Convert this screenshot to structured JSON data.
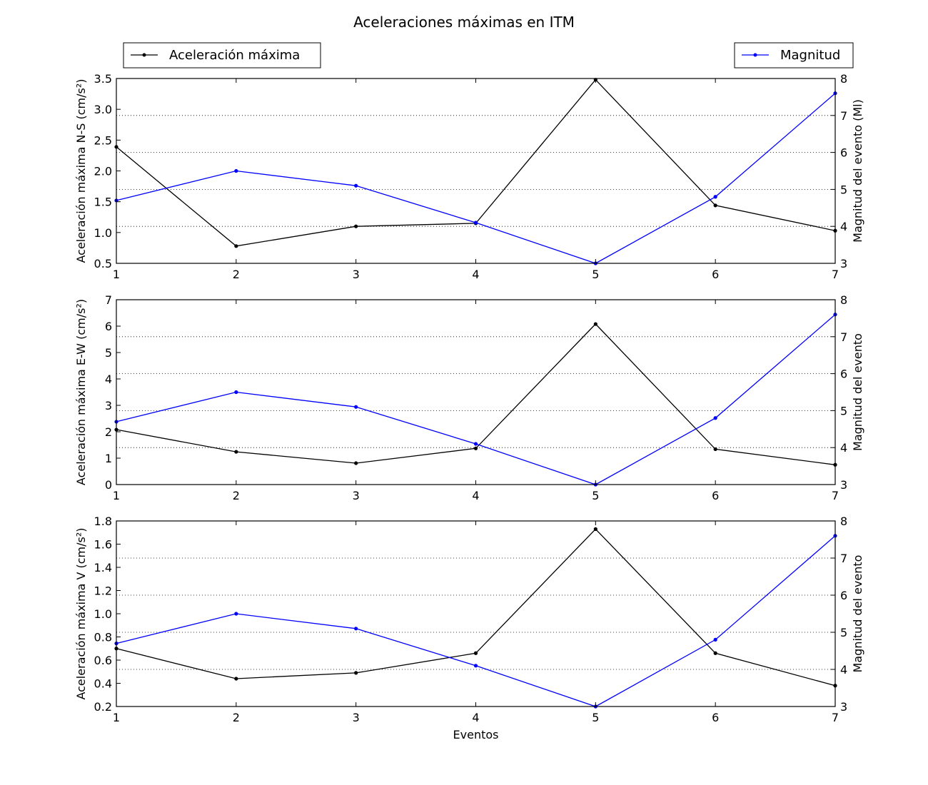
{
  "title": "Aceleraciones máximas en ITM",
  "legend": {
    "left_label": "Aceleración máxima",
    "right_label": "Magnitud"
  },
  "xlabel": "Eventos",
  "colors": {
    "accel": "#000000",
    "magnitude": "#0000ff",
    "grid": "#000000"
  },
  "chart_data": [
    {
      "type": "line",
      "title": "Aceleraciones máximas en ITM",
      "xlabel": "",
      "x": [
        1,
        2,
        3,
        4,
        5,
        6,
        7
      ],
      "xlim": [
        1,
        7
      ],
      "xticks": [
        "1",
        "2",
        "3",
        "4",
        "5",
        "6",
        "7"
      ],
      "ylabel": "Aceleración máxima N-S (cm/s²)",
      "ylim": [
        0.5,
        3.5
      ],
      "yticks": [
        "0.5",
        "1.0",
        "1.5",
        "2.0",
        "2.5",
        "3.0",
        "3.5"
      ],
      "ylabel_right": "Magnitud del evento (Ml)",
      "ylim_right": [
        3,
        8
      ],
      "yticks_right": [
        "3",
        "4",
        "5",
        "6",
        "7",
        "8"
      ],
      "grid": "horizontal dotted (right axis)",
      "series": [
        {
          "name": "Aceleración máxima",
          "axis": "left",
          "values": [
            2.39,
            0.78,
            1.1,
            1.15,
            3.48,
            1.44,
            1.03
          ]
        },
        {
          "name": "Magnitud",
          "axis": "right",
          "values": [
            4.7,
            5.5,
            5.1,
            4.1,
            3.0,
            4.8,
            7.6
          ]
        }
      ]
    },
    {
      "type": "line",
      "xlabel": "",
      "x": [
        1,
        2,
        3,
        4,
        5,
        6,
        7
      ],
      "xlim": [
        1,
        7
      ],
      "xticks": [
        "1",
        "2",
        "3",
        "4",
        "5",
        "6",
        "7"
      ],
      "ylabel": "Aceleración máxima E-W (cm/s²)",
      "ylim": [
        0,
        7
      ],
      "yticks": [
        "0",
        "1",
        "2",
        "3",
        "4",
        "5",
        "6",
        "7"
      ],
      "ylabel_right": "Magnitud del evento",
      "ylim_right": [
        3,
        8
      ],
      "yticks_right": [
        "3",
        "4",
        "5",
        "6",
        "7",
        "8"
      ],
      "grid": "horizontal dotted (right axis)",
      "series": [
        {
          "name": "Aceleración máxima",
          "axis": "left",
          "values": [
            2.08,
            1.24,
            0.81,
            1.37,
            6.08,
            1.34,
            0.75
          ]
        },
        {
          "name": "Magnitud",
          "axis": "right",
          "values": [
            4.7,
            5.5,
            5.1,
            4.1,
            3.0,
            4.8,
            7.6
          ]
        }
      ]
    },
    {
      "type": "line",
      "xlabel": "Eventos",
      "x": [
        1,
        2,
        3,
        4,
        5,
        6,
        7
      ],
      "xlim": [
        1,
        7
      ],
      "xticks": [
        "1",
        "2",
        "3",
        "4",
        "5",
        "6",
        "7"
      ],
      "ylabel": "Aceleración máxima V (cm/s²)",
      "ylim": [
        0.2,
        1.8
      ],
      "yticks": [
        "0.2",
        "0.4",
        "0.6",
        "0.8",
        "1.0",
        "1.2",
        "1.4",
        "1.6",
        "1.8"
      ],
      "ylabel_right": "Magnitud del evento",
      "ylim_right": [
        3,
        8
      ],
      "yticks_right": [
        "3",
        "4",
        "5",
        "6",
        "7",
        "8"
      ],
      "grid": "horizontal dotted (right axis)",
      "series": [
        {
          "name": "Aceleración máxima",
          "axis": "left",
          "values": [
            0.7,
            0.44,
            0.49,
            0.66,
            1.73,
            0.66,
            0.38
          ]
        },
        {
          "name": "Magnitud",
          "axis": "right",
          "values": [
            4.7,
            5.5,
            5.1,
            4.1,
            3.0,
            4.8,
            7.6
          ]
        }
      ]
    }
  ]
}
